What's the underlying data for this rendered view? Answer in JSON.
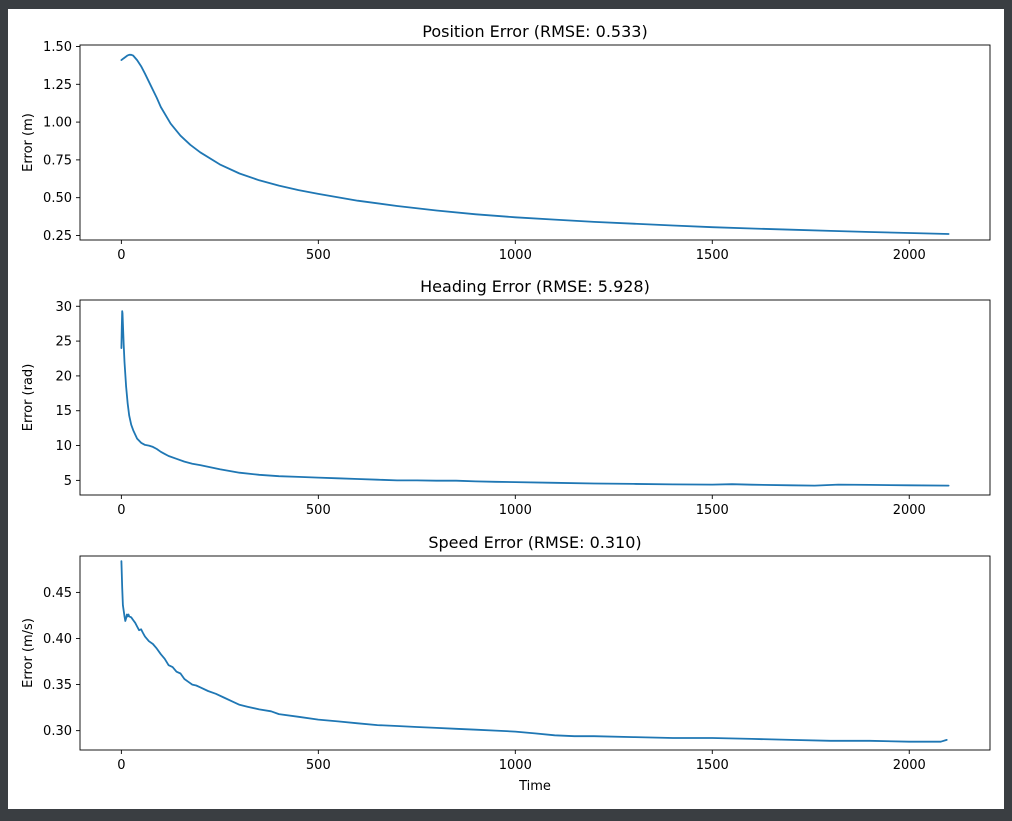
{
  "chart_data": [
    {
      "type": "line",
      "title": "Position Error (RMSE: 0.533)",
      "xlabel": "",
      "ylabel": "Error (m)",
      "xlim": [
        -105,
        2205
      ],
      "ylim": [
        0.22,
        1.51
      ],
      "xticks": [
        0,
        500,
        1000,
        1500,
        2000
      ],
      "yticks": [
        0.25,
        0.5,
        0.75,
        1.0,
        1.25,
        1.5
      ],
      "ytick_labels": [
        "0.25",
        "0.50",
        "0.75",
        "1.00",
        "1.25",
        "1.50"
      ],
      "grid": false,
      "color": "#1f77b4",
      "series": [
        {
          "x": [
            0,
            5,
            10,
            15,
            20,
            25,
            30,
            40,
            50,
            60,
            75,
            90,
            100,
            125,
            150,
            175,
            200,
            250,
            300,
            350,
            400,
            450,
            500,
            600,
            700,
            800,
            900,
            1000,
            1100,
            1200,
            1300,
            1400,
            1500,
            1600,
            1700,
            1800,
            1900,
            2000,
            2100
          ],
          "values": [
            1.41,
            1.42,
            1.43,
            1.44,
            1.445,
            1.445,
            1.44,
            1.41,
            1.37,
            1.32,
            1.24,
            1.16,
            1.1,
            0.99,
            0.91,
            0.85,
            0.8,
            0.72,
            0.66,
            0.615,
            0.58,
            0.55,
            0.525,
            0.48,
            0.445,
            0.415,
            0.39,
            0.37,
            0.355,
            0.34,
            0.328,
            0.316,
            0.305,
            0.296,
            0.288,
            0.28,
            0.273,
            0.266,
            0.26
          ]
        }
      ]
    },
    {
      "type": "line",
      "title": "Heading Error (RMSE: 5.928)",
      "xlabel": "",
      "ylabel": "Error (rad)",
      "xlim": [
        -105,
        2205
      ],
      "ylim": [
        2.9,
        30.9
      ],
      "xticks": [
        0,
        500,
        1000,
        1500,
        2000
      ],
      "yticks": [
        5,
        10,
        15,
        20,
        25,
        30
      ],
      "ytick_labels": [
        "5",
        "10",
        "15",
        "20",
        "25",
        "30"
      ],
      "grid": false,
      "color": "#1f77b4",
      "series": [
        {
          "x": [
            0,
            1,
            2,
            3,
            4,
            6,
            8,
            12,
            16,
            20,
            25,
            30,
            40,
            50,
            60,
            70,
            80,
            90,
            100,
            110,
            120,
            140,
            160,
            180,
            200,
            250,
            300,
            350,
            400,
            450,
            500,
            550,
            600,
            650,
            700,
            750,
            800,
            850,
            900,
            950,
            1000,
            1100,
            1200,
            1300,
            1400,
            1500,
            1550,
            1600,
            1700,
            1760,
            1820,
            1900,
            2000,
            2100
          ],
          "values": [
            24.0,
            27.0,
            29.3,
            29.0,
            27.5,
            24.5,
            22.0,
            18.5,
            16.0,
            14.3,
            13.0,
            12.2,
            11.0,
            10.4,
            10.1,
            10.0,
            9.8,
            9.5,
            9.1,
            8.8,
            8.5,
            8.1,
            7.7,
            7.4,
            7.2,
            6.6,
            6.1,
            5.8,
            5.6,
            5.5,
            5.4,
            5.3,
            5.2,
            5.1,
            5.0,
            5.0,
            4.95,
            4.95,
            4.85,
            4.8,
            4.75,
            4.65,
            4.55,
            4.5,
            4.42,
            4.4,
            4.45,
            4.38,
            4.3,
            4.25,
            4.4,
            4.35,
            4.3,
            4.25
          ]
        }
      ]
    },
    {
      "type": "line",
      "title": "Speed Error (RMSE: 0.310)",
      "xlabel": "Time",
      "ylabel": "Error (m/s)",
      "xlim": [
        -105,
        2205
      ],
      "ylim": [
        0.279,
        0.4895
      ],
      "xticks": [
        0,
        500,
        1000,
        1500,
        2000
      ],
      "yticks": [
        0.3,
        0.35,
        0.4,
        0.45
      ],
      "ytick_labels": [
        "0.30",
        "0.35",
        "0.40",
        "0.45"
      ],
      "grid": false,
      "color": "#1f77b4",
      "series": [
        {
          "x": [
            0,
            2,
            4,
            6,
            8,
            10,
            12,
            14,
            16,
            18,
            20,
            25,
            30,
            35,
            40,
            45,
            50,
            55,
            60,
            70,
            80,
            90,
            100,
            110,
            120,
            130,
            140,
            150,
            160,
            170,
            180,
            190,
            200,
            220,
            240,
            260,
            280,
            300,
            320,
            350,
            380,
            400,
            450,
            500,
            550,
            600,
            650,
            700,
            750,
            800,
            850,
            900,
            950,
            1000,
            1050,
            1100,
            1150,
            1200,
            1300,
            1400,
            1500,
            1600,
            1700,
            1800,
            1900,
            2000,
            2080,
            2095
          ],
          "values": [
            0.484,
            0.455,
            0.436,
            0.43,
            0.424,
            0.419,
            0.422,
            0.426,
            0.424,
            0.426,
            0.424,
            0.423,
            0.42,
            0.417,
            0.413,
            0.409,
            0.41,
            0.406,
            0.402,
            0.397,
            0.394,
            0.389,
            0.383,
            0.378,
            0.371,
            0.369,
            0.364,
            0.362,
            0.356,
            0.353,
            0.35,
            0.349,
            0.347,
            0.343,
            0.34,
            0.336,
            0.332,
            0.328,
            0.326,
            0.323,
            0.321,
            0.318,
            0.315,
            0.312,
            0.31,
            0.308,
            0.306,
            0.305,
            0.304,
            0.303,
            0.302,
            0.301,
            0.3,
            0.299,
            0.297,
            0.295,
            0.294,
            0.294,
            0.293,
            0.292,
            0.292,
            0.291,
            0.29,
            0.289,
            0.289,
            0.288,
            0.288,
            0.29
          ]
        }
      ]
    }
  ]
}
